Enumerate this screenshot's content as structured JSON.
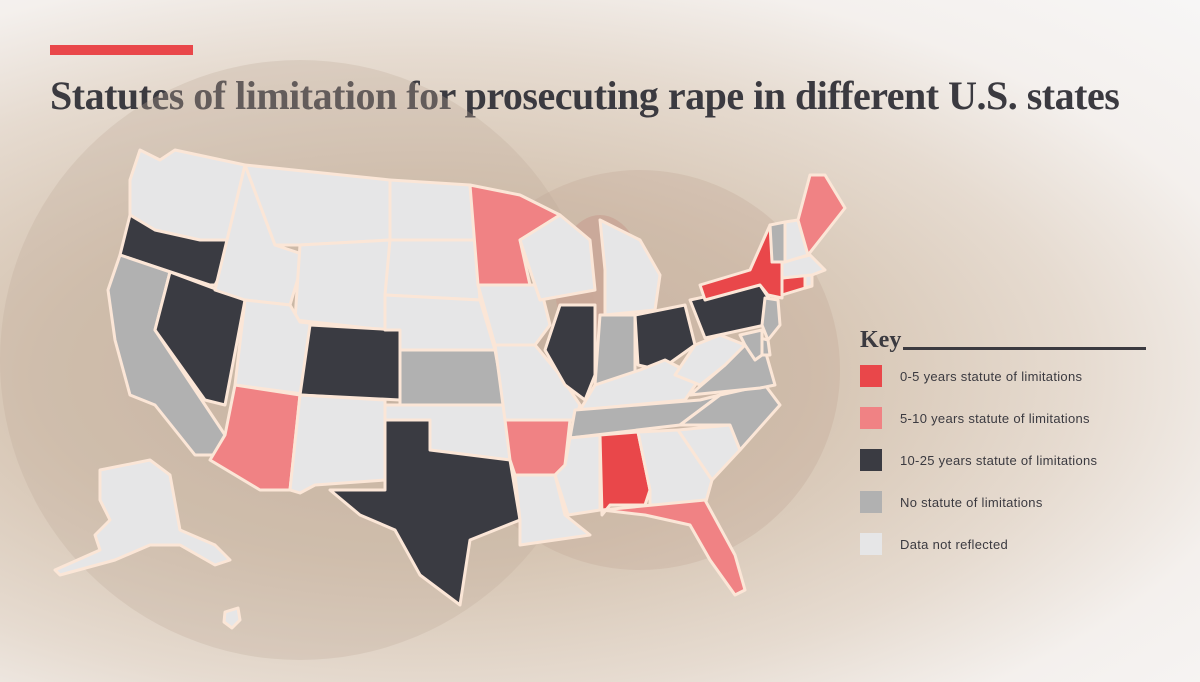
{
  "title": "Statutes of limitation for prosecuting rape in different U.S. states",
  "colors": {
    "accent": "#e9474a",
    "short": "#e9474a",
    "medium": "#f08284",
    "long": "#3a3b42",
    "none": "#b1b1b1",
    "nodata": "#e6e6e7",
    "border": "#fbe6d7"
  },
  "key": {
    "title": "Key",
    "items": [
      {
        "label": "0-5 years statute of limitations",
        "category": "short"
      },
      {
        "label": "5-10 years statute of limitations",
        "category": "medium"
      },
      {
        "label": "10-25 years statute of limitations",
        "category": "long"
      },
      {
        "label": "No statute of limitations",
        "category": "none"
      },
      {
        "label": "Data not reflected",
        "category": "nodata"
      }
    ]
  },
  "states": {
    "NY": "short",
    "CT": "short",
    "AL": "short",
    "MN": "medium",
    "ME": "medium",
    "AZ": "medium",
    "AR": "medium",
    "FL": "medium",
    "OR": "long",
    "NV": "long",
    "CO": "long",
    "TX": "long",
    "IL": "long",
    "OH": "long",
    "PA": "long",
    "CA": "none",
    "KS": "none",
    "IN": "none",
    "TN": "none",
    "VA": "none",
    "NC": "none",
    "VT": "none",
    "NJ": "none",
    "DE": "none",
    "MD": "none",
    "WA": "nodata",
    "ID": "nodata",
    "MT": "nodata",
    "WY": "nodata",
    "UT": "nodata",
    "NM": "nodata",
    "ND": "nodata",
    "SD": "nodata",
    "NE": "nodata",
    "OK": "nodata",
    "IA": "nodata",
    "MO": "nodata",
    "WI": "nodata",
    "MI": "nodata",
    "KY": "nodata",
    "LA": "nodata",
    "MS": "nodata",
    "GA": "nodata",
    "SC": "nodata",
    "WV": "nodata",
    "NH": "nodata",
    "MA": "nodata",
    "RI": "nodata",
    "AK": "nodata",
    "HI": "nodata"
  }
}
